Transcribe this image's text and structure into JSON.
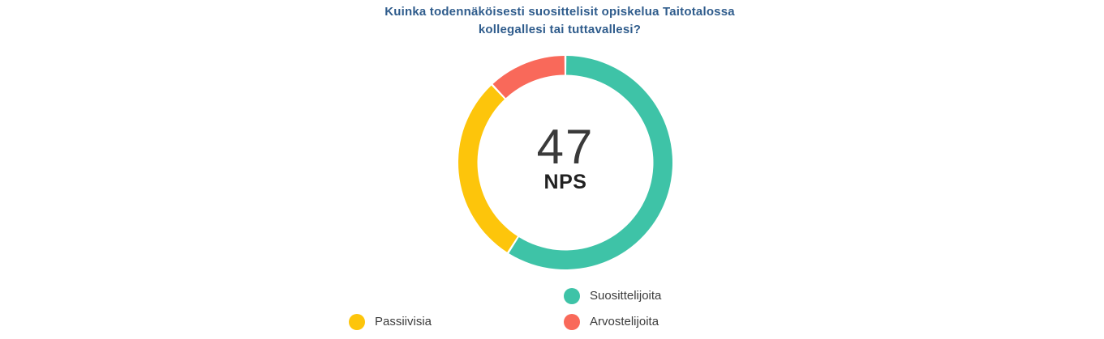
{
  "chart_data": {
    "type": "pie",
    "variant": "donut",
    "title": "Kuinka todennäköisesti suosittelisit opiskelua Taitotalossa kollegallesi tai tuttavallesi?",
    "title_lines": [
      "Kuinka todennäköisesti suosittelisit opiskelua Taitotalossa",
      "kollegallesi tai tuttavallesi?"
    ],
    "title_color": "#2F5C8C",
    "center_value": "47",
    "center_label": "NPS",
    "nps_score": 47,
    "start_angle_deg": 0,
    "direction": "clockwise",
    "legend_position": "bottom",
    "background_color": "#FFFFFF",
    "segments": [
      {
        "label": "Suosittelijoita",
        "value_pct": 59,
        "color": "#3EC3A7"
      },
      {
        "label": "Passiivisia",
        "value_pct": 29,
        "color": "#FDC50B"
      },
      {
        "label": "Arvostelijoita",
        "value_pct": 12,
        "color": "#F9695A"
      }
    ]
  }
}
